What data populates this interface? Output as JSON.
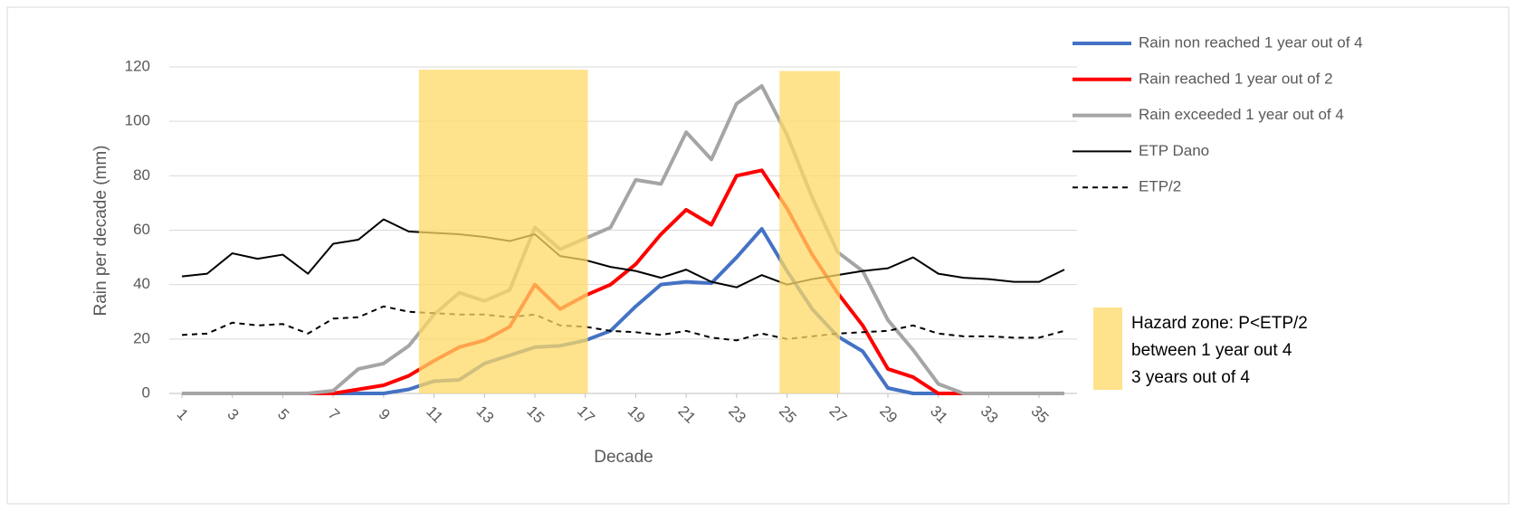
{
  "chart_data": {
    "type": "line",
    "x_label": "Decade",
    "y_label": "Rain per decade (mm)",
    "x": [
      1,
      2,
      3,
      4,
      5,
      6,
      7,
      8,
      9,
      10,
      11,
      12,
      13,
      14,
      15,
      16,
      17,
      18,
      19,
      20,
      21,
      22,
      23,
      24,
      25,
      26,
      27,
      28,
      29,
      30,
      31,
      32,
      33,
      34,
      35,
      36
    ],
    "xlim": [
      1,
      36
    ],
    "xticks": [
      1,
      3,
      5,
      7,
      9,
      11,
      13,
      15,
      17,
      19,
      21,
      23,
      25,
      27,
      29,
      31,
      33,
      35
    ],
    "ylim": [
      0,
      120
    ],
    "yticks": [
      0,
      20,
      40,
      60,
      80,
      100,
      120
    ],
    "grid": true,
    "legend": "right",
    "series": [
      {
        "name": "Rain non reached 1 year out of 4",
        "color": "#4472c4",
        "width": 4,
        "dash": false,
        "values": [
          0,
          0,
          0,
          0,
          0,
          0,
          0,
          0,
          0,
          1.5,
          4.5,
          5,
          11,
          14,
          17,
          17.5,
          19.5,
          23,
          32,
          40,
          41,
          40.5,
          50,
          60.5,
          45,
          31,
          21,
          15.5,
          2,
          0,
          0,
          0,
          0,
          0,
          0,
          0
        ]
      },
      {
        "name": "Rain reached  1 year out of  2",
        "color": "#ff0000",
        "width": 4,
        "dash": false,
        "values": [
          0,
          0,
          0,
          0,
          0,
          0,
          0,
          1.5,
          3,
          6.5,
          12,
          17,
          19.5,
          24.5,
          40,
          31,
          36,
          40,
          47.5,
          58.5,
          67.5,
          62,
          80,
          82,
          68,
          51,
          37,
          25,
          9,
          6,
          0,
          0,
          0,
          0,
          0,
          0
        ]
      },
      {
        "name": "Rain exceeded 1 year out of  4",
        "color": "#a5a5a5",
        "width": 4,
        "dash": false,
        "values": [
          0,
          0,
          0,
          0,
          0,
          0,
          1,
          9,
          11,
          17.5,
          29,
          37,
          34,
          38,
          61,
          53,
          57,
          61,
          78.5,
          77,
          96,
          86,
          106.5,
          113,
          95,
          72,
          52,
          45,
          27,
          16,
          3.5,
          0,
          0,
          0,
          0,
          0
        ]
      },
      {
        "name": "ETP  Dano",
        "color": "#000000",
        "width": 2,
        "dash": false,
        "values": [
          43,
          44,
          51.5,
          49.5,
          51,
          44,
          55,
          56.5,
          64,
          59.5,
          59,
          58.5,
          57.5,
          56,
          58.5,
          50.5,
          49,
          46.5,
          45,
          42.5,
          45.5,
          41,
          39,
          43.5,
          40,
          42,
          43.5,
          45,
          46,
          50,
          44,
          42.5,
          42,
          41,
          41,
          45.5
        ]
      },
      {
        "name": "ETP/2",
        "color": "#000000",
        "width": 2,
        "dash": true,
        "values": [
          21.5,
          22,
          26,
          25,
          25.5,
          22,
          27.5,
          28,
          32,
          30,
          29.5,
          29,
          29,
          28,
          29,
          25,
          24.5,
          23,
          22.5,
          21.5,
          23,
          20.5,
          19.5,
          22,
          20,
          21,
          22,
          22.5,
          23,
          25,
          22,
          21,
          21,
          20.5,
          20.5,
          23
        ]
      }
    ],
    "bands": [
      {
        "from": 10.4,
        "to": 17.1,
        "top": 119
      },
      {
        "from": 24.7,
        "to": 27.1,
        "top": 118.5
      }
    ],
    "band_color": "#ffd966",
    "band_label": [
      "Hazard zone: P<ETP/2",
      "between 1 year out 4",
      "3 years out of 4"
    ]
  }
}
